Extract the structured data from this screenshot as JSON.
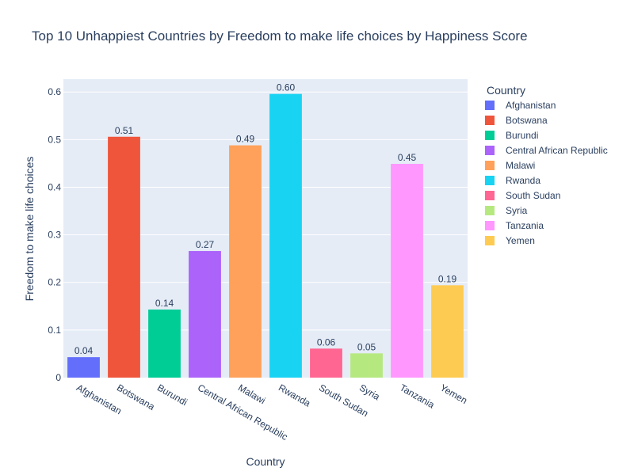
{
  "chart_data": {
    "type": "bar",
    "title": "Top 10 Unhappiest Countries by Freedom to make life choices by Happiness Score",
    "xlabel": "Country",
    "ylabel": "Freedom to make life choices",
    "categories": [
      "Afghanistan",
      "Botswana",
      "Burundi",
      "Central African Republic",
      "Malawi",
      "Rwanda",
      "South Sudan",
      "Syria",
      "Tanzania",
      "Yemen"
    ],
    "values": [
      0.043,
      0.506,
      0.143,
      0.266,
      0.488,
      0.596,
      0.061,
      0.051,
      0.449,
      0.194
    ],
    "data_labels": [
      "0.04",
      "0.51",
      "0.14",
      "0.27",
      "0.49",
      "0.60",
      "0.06",
      "0.05",
      "0.45",
      "0.19"
    ],
    "colors": [
      "#636efa",
      "#EF553B",
      "#00cc96",
      "#ab63fa",
      "#FFA15A",
      "#19d3f3",
      "#FF6692",
      "#B6E880",
      "#FF97FF",
      "#FECB52"
    ],
    "ylim": [
      0,
      0.627
    ],
    "yticks": [
      0,
      0.1,
      0.2,
      0.3,
      0.4,
      0.5,
      0.6
    ],
    "ytick_labels": [
      "0",
      "0.1",
      "0.2",
      "0.3",
      "0.4",
      "0.5",
      "0.6"
    ],
    "grid": true,
    "legend": {
      "title": "Country",
      "position": "right",
      "entries": [
        "Afghanistan",
        "Botswana",
        "Burundi",
        "Central African Republic",
        "Malawi",
        "Rwanda",
        "South Sudan",
        "Syria",
        "Tanzania",
        "Yemen"
      ]
    },
    "plot_bgcolor": "#e5ecf6",
    "text_color": "#2a3f5f"
  }
}
